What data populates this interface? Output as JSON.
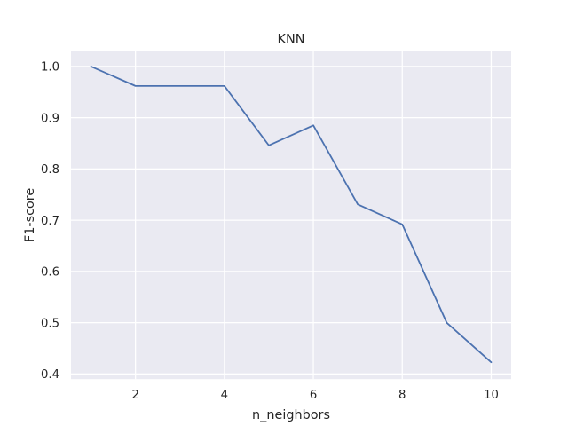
{
  "chart_data": {
    "type": "line",
    "title": "KNN",
    "xlabel": "n_neighbors",
    "ylabel": "F1-score",
    "xlim": [
      0.55,
      10.45
    ],
    "ylim": [
      0.39,
      1.03
    ],
    "xticks": [
      2,
      4,
      6,
      8,
      10
    ],
    "yticks": [
      0.4,
      0.5,
      0.6,
      0.7,
      0.8,
      0.9,
      1.0
    ],
    "xtick_labels": [
      "2",
      "4",
      "6",
      "8",
      "10"
    ],
    "ytick_labels": [
      "0.4",
      "0.5",
      "0.6",
      "0.7",
      "0.8",
      "0.9",
      "1.0"
    ],
    "grid": true,
    "series": [
      {
        "x": [
          1,
          2,
          3,
          4,
          5,
          6,
          7,
          8,
          9,
          10
        ],
        "values": [
          1.0,
          0.962,
          0.962,
          0.962,
          0.846,
          0.885,
          0.731,
          0.692,
          0.5,
          0.423
        ]
      }
    ],
    "colors": {
      "background": "#eaeaf2",
      "grid": "#ffffff",
      "line": "#4c72b0",
      "text": "#262626"
    }
  }
}
